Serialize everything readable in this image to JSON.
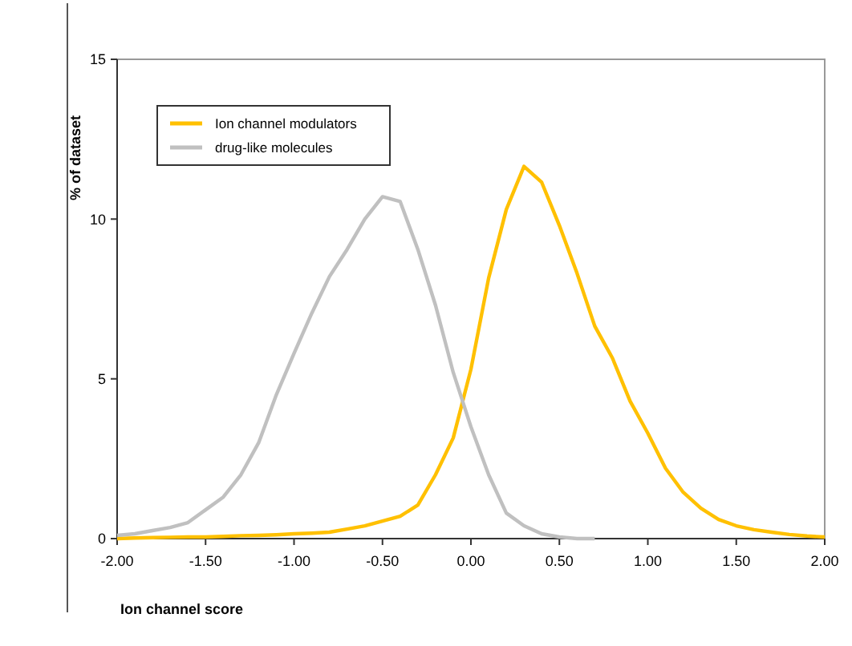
{
  "chart_data": {
    "type": "line",
    "xlabel": "Ion channel score",
    "ylabel": "% of dataset",
    "xlim": [
      -2,
      2
    ],
    "ylim": [
      0,
      15
    ],
    "xticks": [
      {
        "value": -2,
        "label": "-2.00"
      },
      {
        "value": -1.5,
        "label": "-1.50"
      },
      {
        "value": -1,
        "label": "-1.00"
      },
      {
        "value": -0.5,
        "label": "-0.50"
      },
      {
        "value": 0,
        "label": "0.00"
      },
      {
        "value": 0.5,
        "label": "0.50"
      },
      {
        "value": 1,
        "label": "1.00"
      },
      {
        "value": 1.5,
        "label": "1.50"
      },
      {
        "value": 2,
        "label": "2.00"
      }
    ],
    "yticks": [
      0,
      5,
      10,
      15
    ],
    "x": [
      -2,
      -1.9,
      -1.8,
      -1.7,
      -1.6,
      -1.5,
      -1.4,
      -1.3,
      -1.2,
      -1.1,
      -1,
      -0.9,
      -0.8,
      -0.7,
      -0.6,
      -0.5,
      -0.4,
      -0.3,
      -0.2,
      -0.1,
      0,
      0.1,
      0.2,
      0.3,
      0.4,
      0.5,
      0.6,
      0.7,
      0.8,
      0.9,
      1,
      1.1,
      1.2,
      1.3,
      1.4,
      1.5,
      1.6,
      1.7,
      1.8,
      1.9,
      2
    ],
    "series": [
      {
        "name": "Ion channel modulators",
        "color": "#ffc000",
        "values": [
          0,
          0.02,
          0.03,
          0.04,
          0.05,
          0.05,
          0.07,
          0.09,
          0.1,
          0.12,
          0.15,
          0.17,
          0.2,
          0.3,
          0.4,
          0.55,
          0.7,
          1.05,
          2.0,
          3.15,
          5.3,
          8.15,
          10.3,
          11.65,
          11.15,
          9.8,
          8.3,
          6.65,
          5.65,
          4.3,
          3.3,
          2.2,
          1.45,
          0.95,
          0.6,
          0.4,
          0.28,
          0.2,
          0.13,
          0.08,
          0.05
        ]
      },
      {
        "name": "drug-like molecules",
        "color": "#c0c0c0",
        "values": [
          0.1,
          0.15,
          0.25,
          0.35,
          0.5,
          0.9,
          1.3,
          2.0,
          3.0,
          4.5,
          5.8,
          7.05,
          8.2,
          9.05,
          10.0,
          10.7,
          10.55,
          9.05,
          7.3,
          5.2,
          3.5,
          2.0,
          0.8,
          0.4,
          0.15,
          0.05,
          0,
          0,
          null,
          null,
          null,
          null,
          null,
          null,
          null,
          null,
          null,
          null,
          null,
          null,
          null
        ]
      }
    ],
    "legend": "top left",
    "grid": false,
    "marker": "none",
    "line_style": "solid"
  }
}
